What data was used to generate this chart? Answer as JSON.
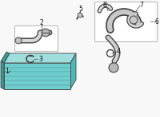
{
  "bg_color": "#f8f8f8",
  "part_color_main": "#6ecece",
  "part_color_dark": "#3a9898",
  "part_color_light": "#a0dede",
  "part_color_side": "#4db8b8",
  "line_color": "#444444",
  "box_color": "#bbbbbb",
  "label_color": "#111111",
  "gray_part": "#aaaaaa",
  "gray_dark": "#888888",
  "white_bg": "#ffffff"
}
